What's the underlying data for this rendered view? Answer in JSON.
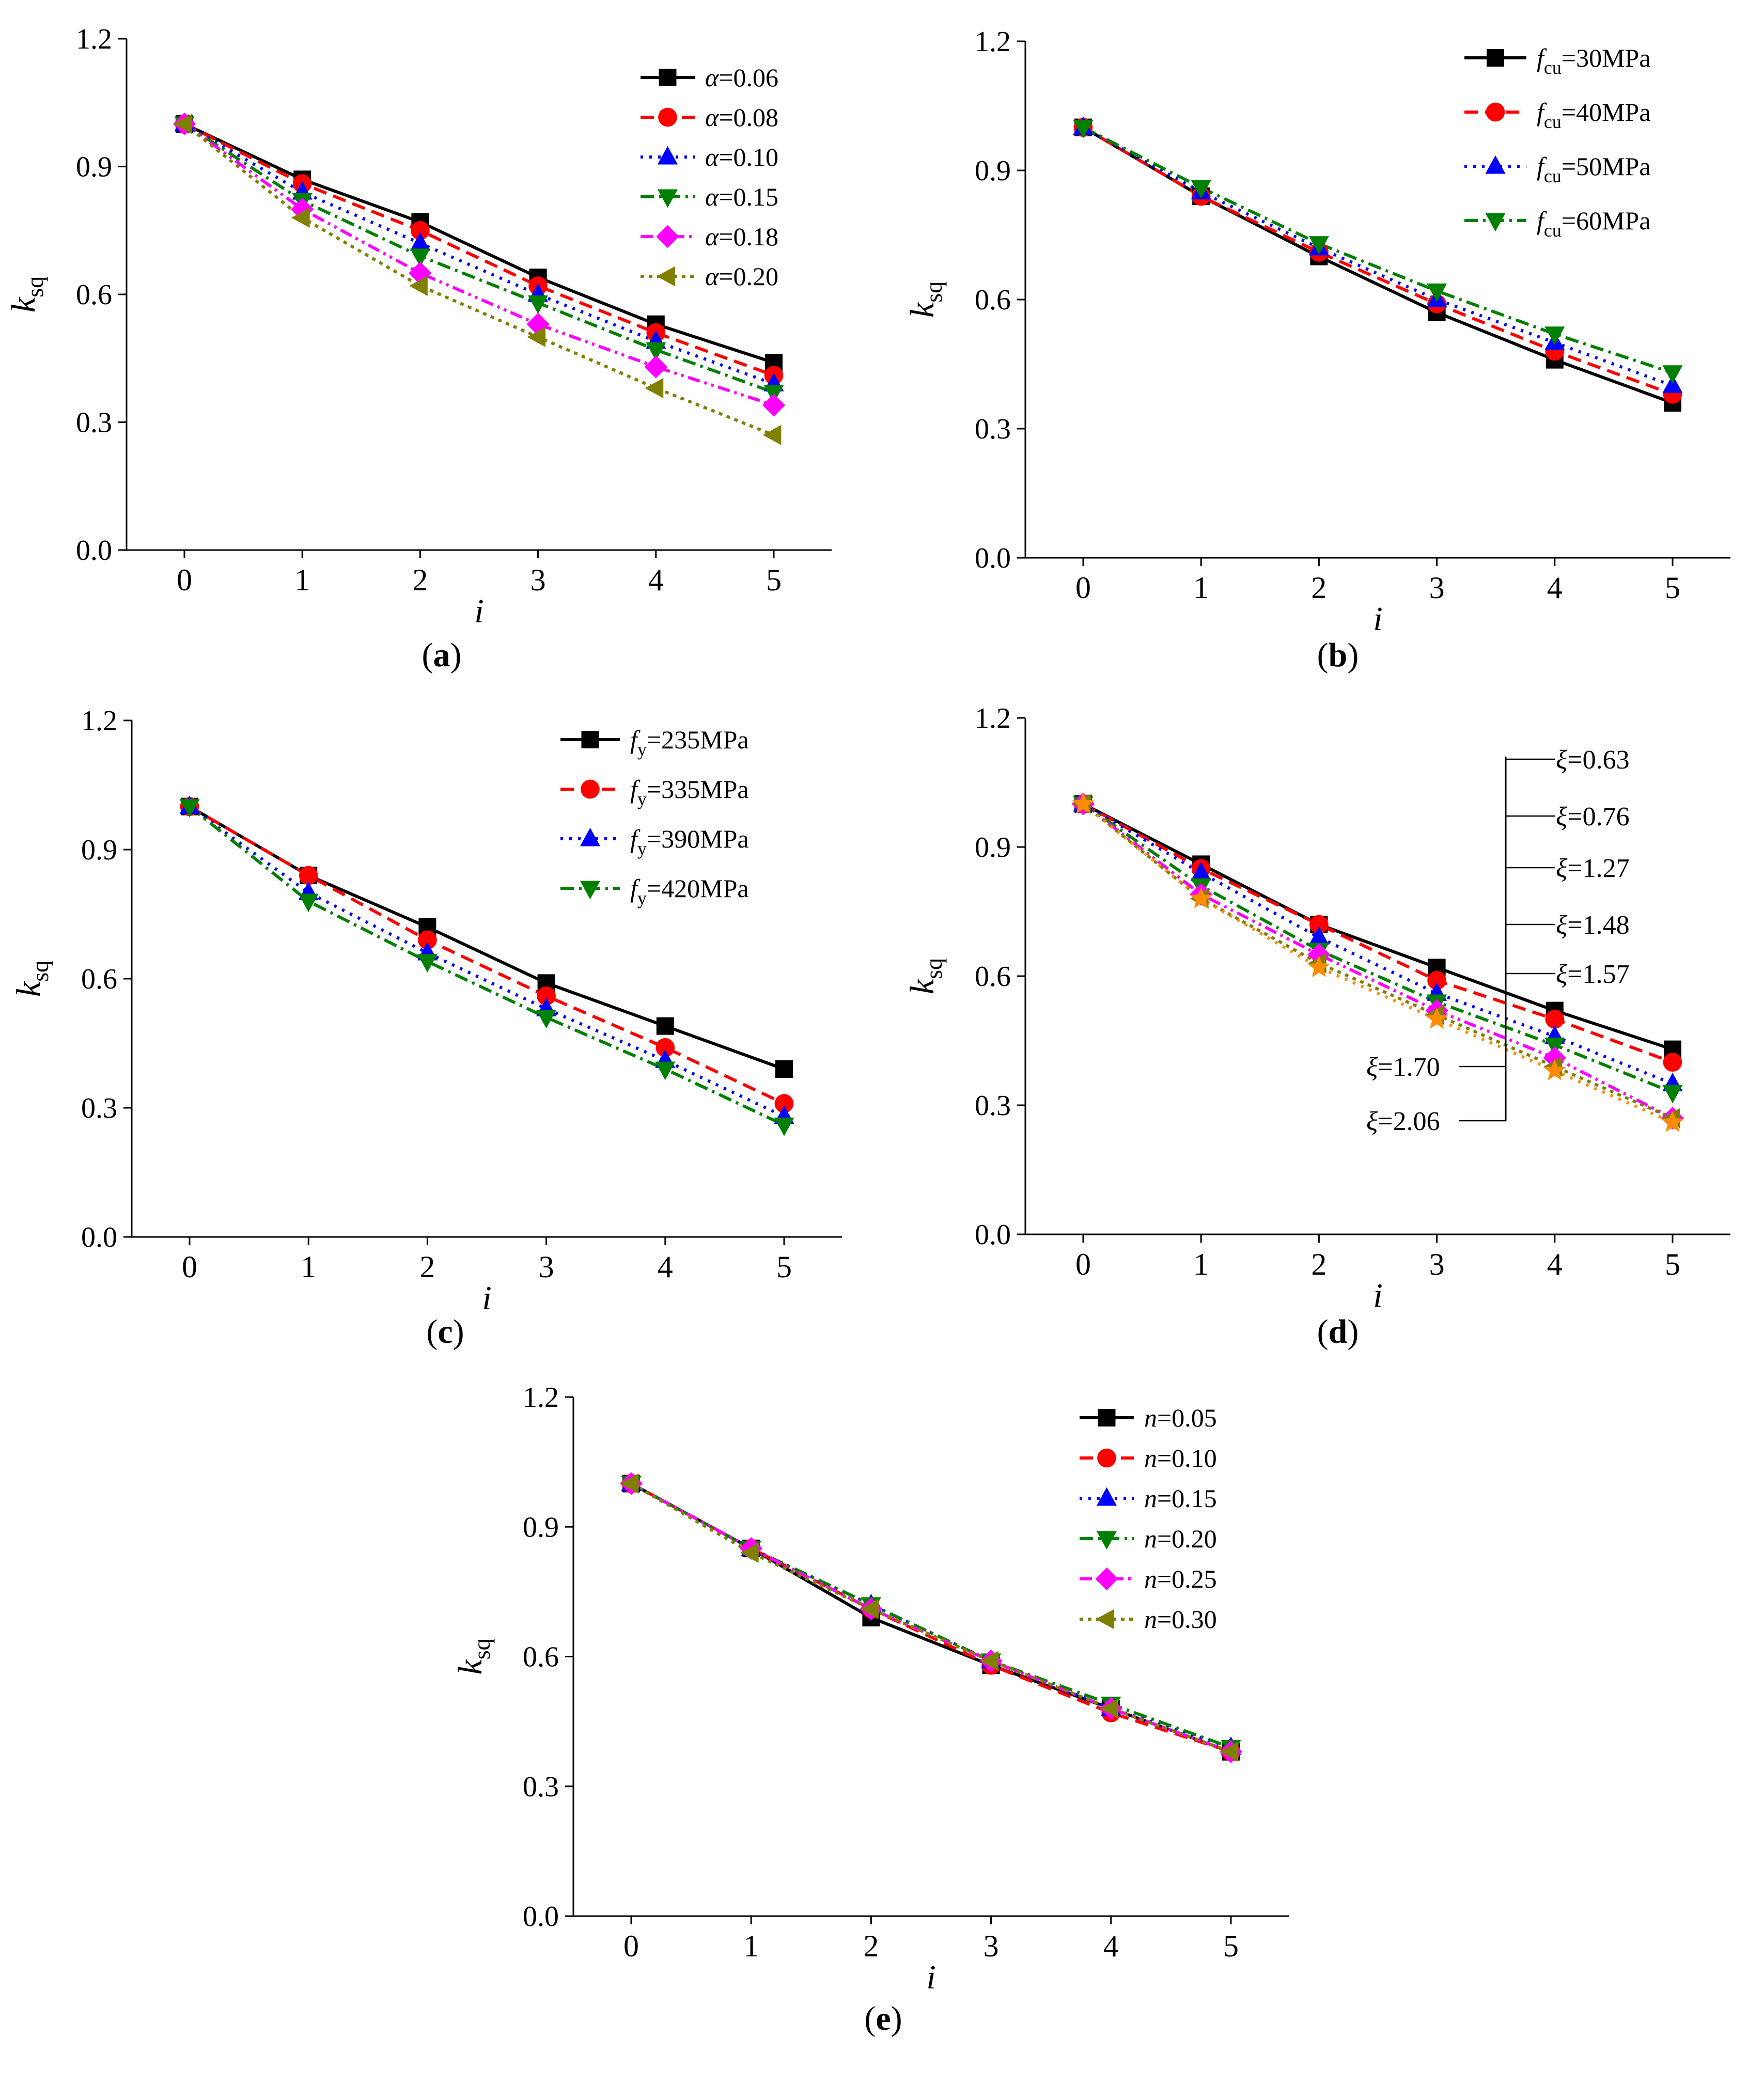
{
  "chart_data": [
    {
      "panel": "(a)",
      "type": "line",
      "xlabel": "i",
      "ylabel": "k",
      "ylabel_sub": "sq",
      "x": [
        0,
        1,
        2,
        3,
        4,
        5
      ],
      "xticks": [
        "0",
        "1",
        "2",
        "3",
        "4",
        "5"
      ],
      "ylim": [
        0,
        1.2
      ],
      "yticks": [
        "0.0",
        "0.3",
        "0.6",
        "0.9",
        "1.2"
      ],
      "legend_position": "top-right",
      "series": [
        {
          "sym": "α",
          "sub": "",
          "val": "=0.06",
          "values": [
            1.0,
            0.87,
            0.77,
            0.64,
            0.53,
            0.44
          ],
          "color": "#000000",
          "marker": "square",
          "dash": "solid"
        },
        {
          "sym": "α",
          "sub": "",
          "val": "=0.08",
          "values": [
            1.0,
            0.86,
            0.75,
            0.62,
            0.51,
            0.41
          ],
          "color": "#ff0000",
          "marker": "circle",
          "dash": "dash"
        },
        {
          "sym": "α",
          "sub": "",
          "val": "=0.10",
          "values": [
            1.0,
            0.84,
            0.72,
            0.6,
            0.49,
            0.39
          ],
          "color": "#0000ff",
          "marker": "triangle-up",
          "dash": "dot"
        },
        {
          "sym": "α",
          "sub": "",
          "val": "=0.15",
          "values": [
            1.0,
            0.82,
            0.69,
            0.58,
            0.47,
            0.37
          ],
          "color": "#008000",
          "marker": "triangle-down",
          "dash": "dashdot"
        },
        {
          "sym": "α",
          "sub": "",
          "val": "=0.18",
          "values": [
            1.0,
            0.8,
            0.65,
            0.53,
            0.43,
            0.34
          ],
          "color": "#ff00ff",
          "marker": "diamond",
          "dash": "dashdotdot"
        },
        {
          "sym": "α",
          "sub": "",
          "val": "=0.20",
          "values": [
            1.0,
            0.78,
            0.62,
            0.5,
            0.38,
            0.27
          ],
          "color": "#808000",
          "marker": "triangle-left",
          "dash": "shortdot"
        }
      ]
    },
    {
      "panel": "(b)",
      "type": "line",
      "xlabel": "i",
      "ylabel": "k",
      "ylabel_sub": "sq",
      "x": [
        0,
        1,
        2,
        3,
        4,
        5
      ],
      "xticks": [
        "0",
        "1",
        "2",
        "3",
        "4",
        "5"
      ],
      "ylim": [
        0,
        1.2
      ],
      "yticks": [
        "0.0",
        "0.3",
        "0.6",
        "0.9",
        "1.2"
      ],
      "legend_position": "top-right",
      "series": [
        {
          "sym": "f",
          "sub": "cu",
          "val": "=30MPa",
          "values": [
            1.0,
            0.84,
            0.7,
            0.57,
            0.46,
            0.36
          ],
          "color": "#000000",
          "marker": "square",
          "dash": "solid"
        },
        {
          "sym": "f",
          "sub": "cu",
          "val": "=40MPa",
          "values": [
            1.0,
            0.84,
            0.71,
            0.59,
            0.48,
            0.38
          ],
          "color": "#ff0000",
          "marker": "circle",
          "dash": "dash"
        },
        {
          "sym": "f",
          "sub": "cu",
          "val": "=50MPa",
          "values": [
            1.0,
            0.85,
            0.72,
            0.6,
            0.5,
            0.4
          ],
          "color": "#0000ff",
          "marker": "triangle-up",
          "dash": "dot"
        },
        {
          "sym": "f",
          "sub": "cu",
          "val": "=60MPa",
          "values": [
            1.0,
            0.86,
            0.73,
            0.62,
            0.52,
            0.43
          ],
          "color": "#008000",
          "marker": "triangle-down",
          "dash": "dashdot"
        }
      ]
    },
    {
      "panel": "(c)",
      "type": "line",
      "xlabel": "i",
      "ylabel": "k",
      "ylabel_sub": "sq",
      "x": [
        0,
        1,
        2,
        3,
        4,
        5
      ],
      "xticks": [
        "0",
        "1",
        "2",
        "3",
        "4",
        "5"
      ],
      "ylim": [
        0,
        1.2
      ],
      "yticks": [
        "0.0",
        "0.3",
        "0.6",
        "0.9",
        "1.2"
      ],
      "legend_position": "top-right",
      "series": [
        {
          "sym": "f",
          "sub": "y",
          "val": "=235MPa",
          "values": [
            1.0,
            0.84,
            0.72,
            0.59,
            0.49,
            0.39
          ],
          "color": "#000000",
          "marker": "square",
          "dash": "solid"
        },
        {
          "sym": "f",
          "sub": "y",
          "val": "=335MPa",
          "values": [
            1.0,
            0.84,
            0.69,
            0.56,
            0.44,
            0.31
          ],
          "color": "#ff0000",
          "marker": "circle",
          "dash": "dash"
        },
        {
          "sym": "f",
          "sub": "y",
          "val": "=390MPa",
          "values": [
            1.0,
            0.8,
            0.66,
            0.53,
            0.41,
            0.28
          ],
          "color": "#0000ff",
          "marker": "triangle-up",
          "dash": "dot"
        },
        {
          "sym": "f",
          "sub": "y",
          "val": "=420MPa",
          "values": [
            1.0,
            0.78,
            0.64,
            0.51,
            0.39,
            0.26
          ],
          "color": "#008000",
          "marker": "triangle-down",
          "dash": "dashdot"
        }
      ]
    },
    {
      "panel": "(d)",
      "type": "line",
      "xlabel": "i",
      "ylabel": "k",
      "ylabel_sub": "sq",
      "x": [
        0,
        1,
        2,
        3,
        4,
        5
      ],
      "xticks": [
        "0",
        "1",
        "2",
        "3",
        "4",
        "5"
      ],
      "ylim": [
        0,
        1.2
      ],
      "yticks": [
        "0.0",
        "0.3",
        "0.6",
        "0.9",
        "1.2"
      ],
      "legend_position": "annotation-bracket",
      "series": [
        {
          "sym": "ξ",
          "sub": "",
          "val": "=0.63",
          "values": [
            1.0,
            0.86,
            0.72,
            0.62,
            0.52,
            0.43
          ],
          "color": "#000000",
          "marker": "square",
          "dash": "solid"
        },
        {
          "sym": "ξ",
          "sub": "",
          "val": "=0.76",
          "values": [
            1.0,
            0.85,
            0.72,
            0.59,
            0.5,
            0.4
          ],
          "color": "#ff0000",
          "marker": "circle",
          "dash": "dash"
        },
        {
          "sym": "ξ",
          "sub": "",
          "val": "=1.27",
          "values": [
            1.0,
            0.84,
            0.69,
            0.56,
            0.46,
            0.35
          ],
          "color": "#0000ff",
          "marker": "triangle-up",
          "dash": "dot"
        },
        {
          "sym": "ξ",
          "sub": "",
          "val": "=1.48",
          "values": [
            1.0,
            0.81,
            0.66,
            0.54,
            0.44,
            0.33
          ],
          "color": "#008000",
          "marker": "triangle-down",
          "dash": "dashdot"
        },
        {
          "sym": "ξ",
          "sub": "",
          "val": "=1.57",
          "values": [
            1.0,
            0.79,
            0.65,
            0.52,
            0.41,
            0.27
          ],
          "color": "#ff00ff",
          "marker": "diamond",
          "dash": "dashdotdot"
        },
        {
          "sym": "ξ",
          "sub": "",
          "val": "=1.70",
          "values": [
            1.0,
            0.78,
            0.63,
            0.51,
            0.39,
            0.27
          ],
          "color": "#808000",
          "marker": "triangle-left",
          "dash": "shortdot"
        },
        {
          "sym": "ξ",
          "sub": "",
          "val": "=2.06",
          "values": [
            1.0,
            0.78,
            0.62,
            0.5,
            0.38,
            0.26
          ],
          "color": "#ff8c00",
          "marker": "star",
          "dash": "dot"
        }
      ]
    },
    {
      "panel": "(e)",
      "type": "line",
      "xlabel": "i",
      "ylabel": "k",
      "ylabel_sub": "sq",
      "x": [
        0,
        1,
        2,
        3,
        4,
        5
      ],
      "xticks": [
        "0",
        "1",
        "2",
        "3",
        "4",
        "5"
      ],
      "ylim": [
        0,
        1.2
      ],
      "yticks": [
        "0.0",
        "0.3",
        "0.6",
        "0.9",
        "1.2"
      ],
      "legend_position": "top-right",
      "series": [
        {
          "sym": "n",
          "sub": "",
          "val": "=0.05",
          "values": [
            1.0,
            0.85,
            0.69,
            0.58,
            0.48,
            0.38
          ],
          "color": "#000000",
          "marker": "square",
          "dash": "solid"
        },
        {
          "sym": "n",
          "sub": "",
          "val": "=0.10",
          "values": [
            1.0,
            0.85,
            0.71,
            0.58,
            0.47,
            0.38
          ],
          "color": "#ff0000",
          "marker": "circle",
          "dash": "dash"
        },
        {
          "sym": "n",
          "sub": "",
          "val": "=0.15",
          "values": [
            1.0,
            0.85,
            0.72,
            0.59,
            0.48,
            0.39
          ],
          "color": "#0000ff",
          "marker": "triangle-up",
          "dash": "dot"
        },
        {
          "sym": "n",
          "sub": "",
          "val": "=0.20",
          "values": [
            1.0,
            0.85,
            0.72,
            0.59,
            0.49,
            0.39
          ],
          "color": "#008000",
          "marker": "triangle-down",
          "dash": "dashdot"
        },
        {
          "sym": "n",
          "sub": "",
          "val": "=0.25",
          "values": [
            1.0,
            0.85,
            0.71,
            0.59,
            0.48,
            0.38
          ],
          "color": "#ff00ff",
          "marker": "diamond",
          "dash": "dashdotdot"
        },
        {
          "sym": "n",
          "sub": "",
          "val": "=0.30",
          "values": [
            1.0,
            0.84,
            0.71,
            0.59,
            0.48,
            0.38
          ],
          "color": "#808000",
          "marker": "triangle-left",
          "dash": "shortdot"
        }
      ]
    }
  ]
}
